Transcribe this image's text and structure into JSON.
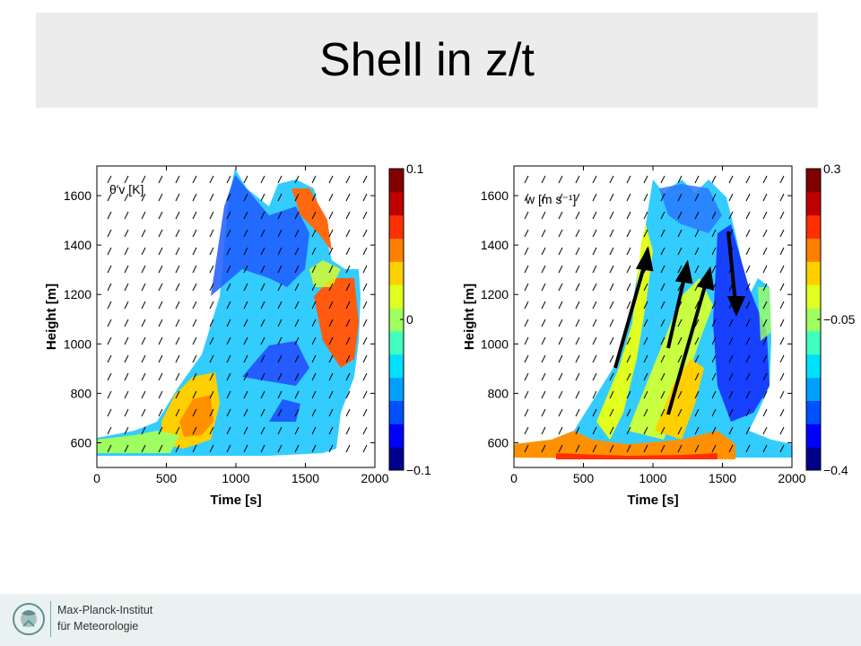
{
  "slide": {
    "title": "Shell in z/t",
    "logo_text_line1": "Max-Planck-Institut",
    "logo_text_line2": "für Meteorologie"
  },
  "chart_data": [
    {
      "type": "heatmap",
      "title": "θ′v [K]",
      "xlabel": "Time [s]",
      "ylabel": "Height [m]",
      "xlim": [
        0,
        2000
      ],
      "ylim": [
        500,
        1720
      ],
      "xticks": [
        0,
        500,
        1000,
        1500,
        2000
      ],
      "yticks": [
        600,
        800,
        1000,
        1200,
        1400,
        1600
      ],
      "colorbar": {
        "min": -0.1,
        "max": 0.1,
        "ticks": [
          -0.1,
          0,
          0.1
        ],
        "tick_labels": [
          "−0.1",
          "0",
          "0.1"
        ]
      },
      "colormap": "jet"
    },
    {
      "type": "heatmap",
      "title": "w [m s⁻¹]",
      "xlabel": "Time [s]",
      "ylabel": "Height [m]",
      "xlim": [
        0,
        2000
      ],
      "ylim": [
        500,
        1720
      ],
      "xticks": [
        0,
        500,
        1000,
        1500,
        2000
      ],
      "yticks": [
        600,
        800,
        1000,
        1200,
        1400,
        1600
      ],
      "colorbar": {
        "min": -0.4,
        "max": 0.3,
        "ticks": [
          -0.4,
          -0.05,
          0.3
        ],
        "tick_labels": [
          "−0.4",
          "−0.05",
          "0.3"
        ]
      },
      "colormap": "jet"
    }
  ],
  "colors": {
    "jet": [
      "#00008f",
      "#0000ff",
      "#0050ff",
      "#00a0ff",
      "#00e0ff",
      "#40ffbf",
      "#a0ff60",
      "#e0ff20",
      "#ffd000",
      "#ff8000",
      "#ff3000",
      "#c00000",
      "#800000"
    ]
  }
}
